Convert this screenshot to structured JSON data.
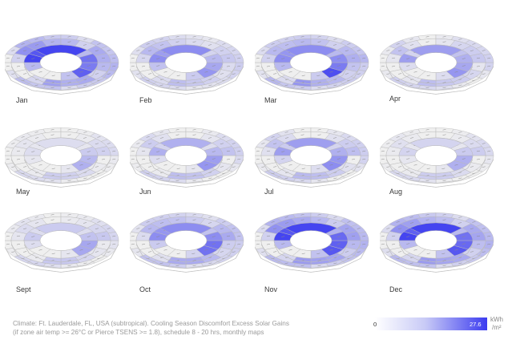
{
  "months": [
    {
      "label": "Jan",
      "intensity": [
        0.95,
        0.85,
        0.6,
        0.55,
        0.3,
        0.7,
        0.65,
        0.8,
        0.25,
        0.0,
        0.0,
        0.3
      ]
    },
    {
      "label": "Feb",
      "intensity": [
        0.55,
        0.45,
        0.3,
        0.2,
        0.15,
        0.3,
        0.4,
        0.5,
        0.2,
        0.0,
        0.0,
        0.25
      ]
    },
    {
      "label": "Mar",
      "intensity": [
        0.55,
        0.5,
        0.55,
        0.45,
        0.3,
        0.55,
        0.65,
        0.9,
        0.2,
        0.0,
        0.0,
        0.3
      ]
    },
    {
      "label": "Apr",
      "intensity": [
        0.45,
        0.15,
        0.0,
        0.1,
        0.25,
        0.35,
        0.4,
        0.5,
        0.1,
        0.0,
        0.0,
        0.1
      ]
    },
    {
      "label": "May",
      "intensity": [
        0.1,
        0.05,
        0.0,
        0.0,
        0.05,
        0.2,
        0.3,
        0.35,
        0.05,
        0.0,
        0.0,
        0.05
      ]
    },
    {
      "label": "Jun",
      "intensity": [
        0.35,
        0.15,
        0.0,
        0.0,
        0.1,
        0.3,
        0.45,
        0.5,
        0.05,
        0.0,
        0.0,
        0.1
      ]
    },
    {
      "label": "Jul",
      "intensity": [
        0.45,
        0.2,
        0.0,
        0.0,
        0.15,
        0.35,
        0.5,
        0.55,
        0.1,
        0.0,
        0.0,
        0.15
      ]
    },
    {
      "label": "Aug",
      "intensity": [
        0.15,
        0.05,
        0.0,
        0.0,
        0.05,
        0.2,
        0.35,
        0.35,
        0.05,
        0.0,
        0.0,
        0.05
      ]
    },
    {
      "label": "Sept",
      "intensity": [
        0.2,
        0.1,
        0.0,
        0.05,
        0.1,
        0.25,
        0.4,
        0.4,
        0.05,
        0.0,
        0.0,
        0.1
      ]
    },
    {
      "label": "Oct",
      "intensity": [
        0.55,
        0.5,
        0.45,
        0.35,
        0.25,
        0.55,
        0.7,
        0.7,
        0.15,
        0.0,
        0.0,
        0.2
      ]
    },
    {
      "label": "Nov",
      "intensity": [
        0.95,
        0.85,
        0.7,
        0.55,
        0.35,
        0.75,
        0.8,
        0.85,
        0.25,
        0.0,
        0.0,
        0.3
      ]
    },
    {
      "label": "Dec",
      "intensity": [
        0.95,
        0.8,
        0.6,
        0.5,
        0.3,
        0.7,
        0.75,
        0.85,
        0.25,
        0.0,
        0.0,
        0.3
      ]
    }
  ],
  "caption": {
    "line1": "Climate: Ft. Lauderdale, FL, USA (subtropical). Cooling Season Discomfort Excess Solar Gains",
    "line2": "(if zone air temp >= 26°C or Pierce TSENS >= 1.8), schedule 8 - 20 hrs, monthly maps"
  },
  "legend": {
    "min": "0",
    "max": "27.6",
    "unit_top": "kWh",
    "unit_bottom": "/m²",
    "color_low": "#ffffff",
    "color_high": "#3c3cf0"
  },
  "colors": {
    "ring_fill": "#efefef",
    "ring_edge": "#b9b9b9",
    "heat": "#3c3cf0"
  }
}
